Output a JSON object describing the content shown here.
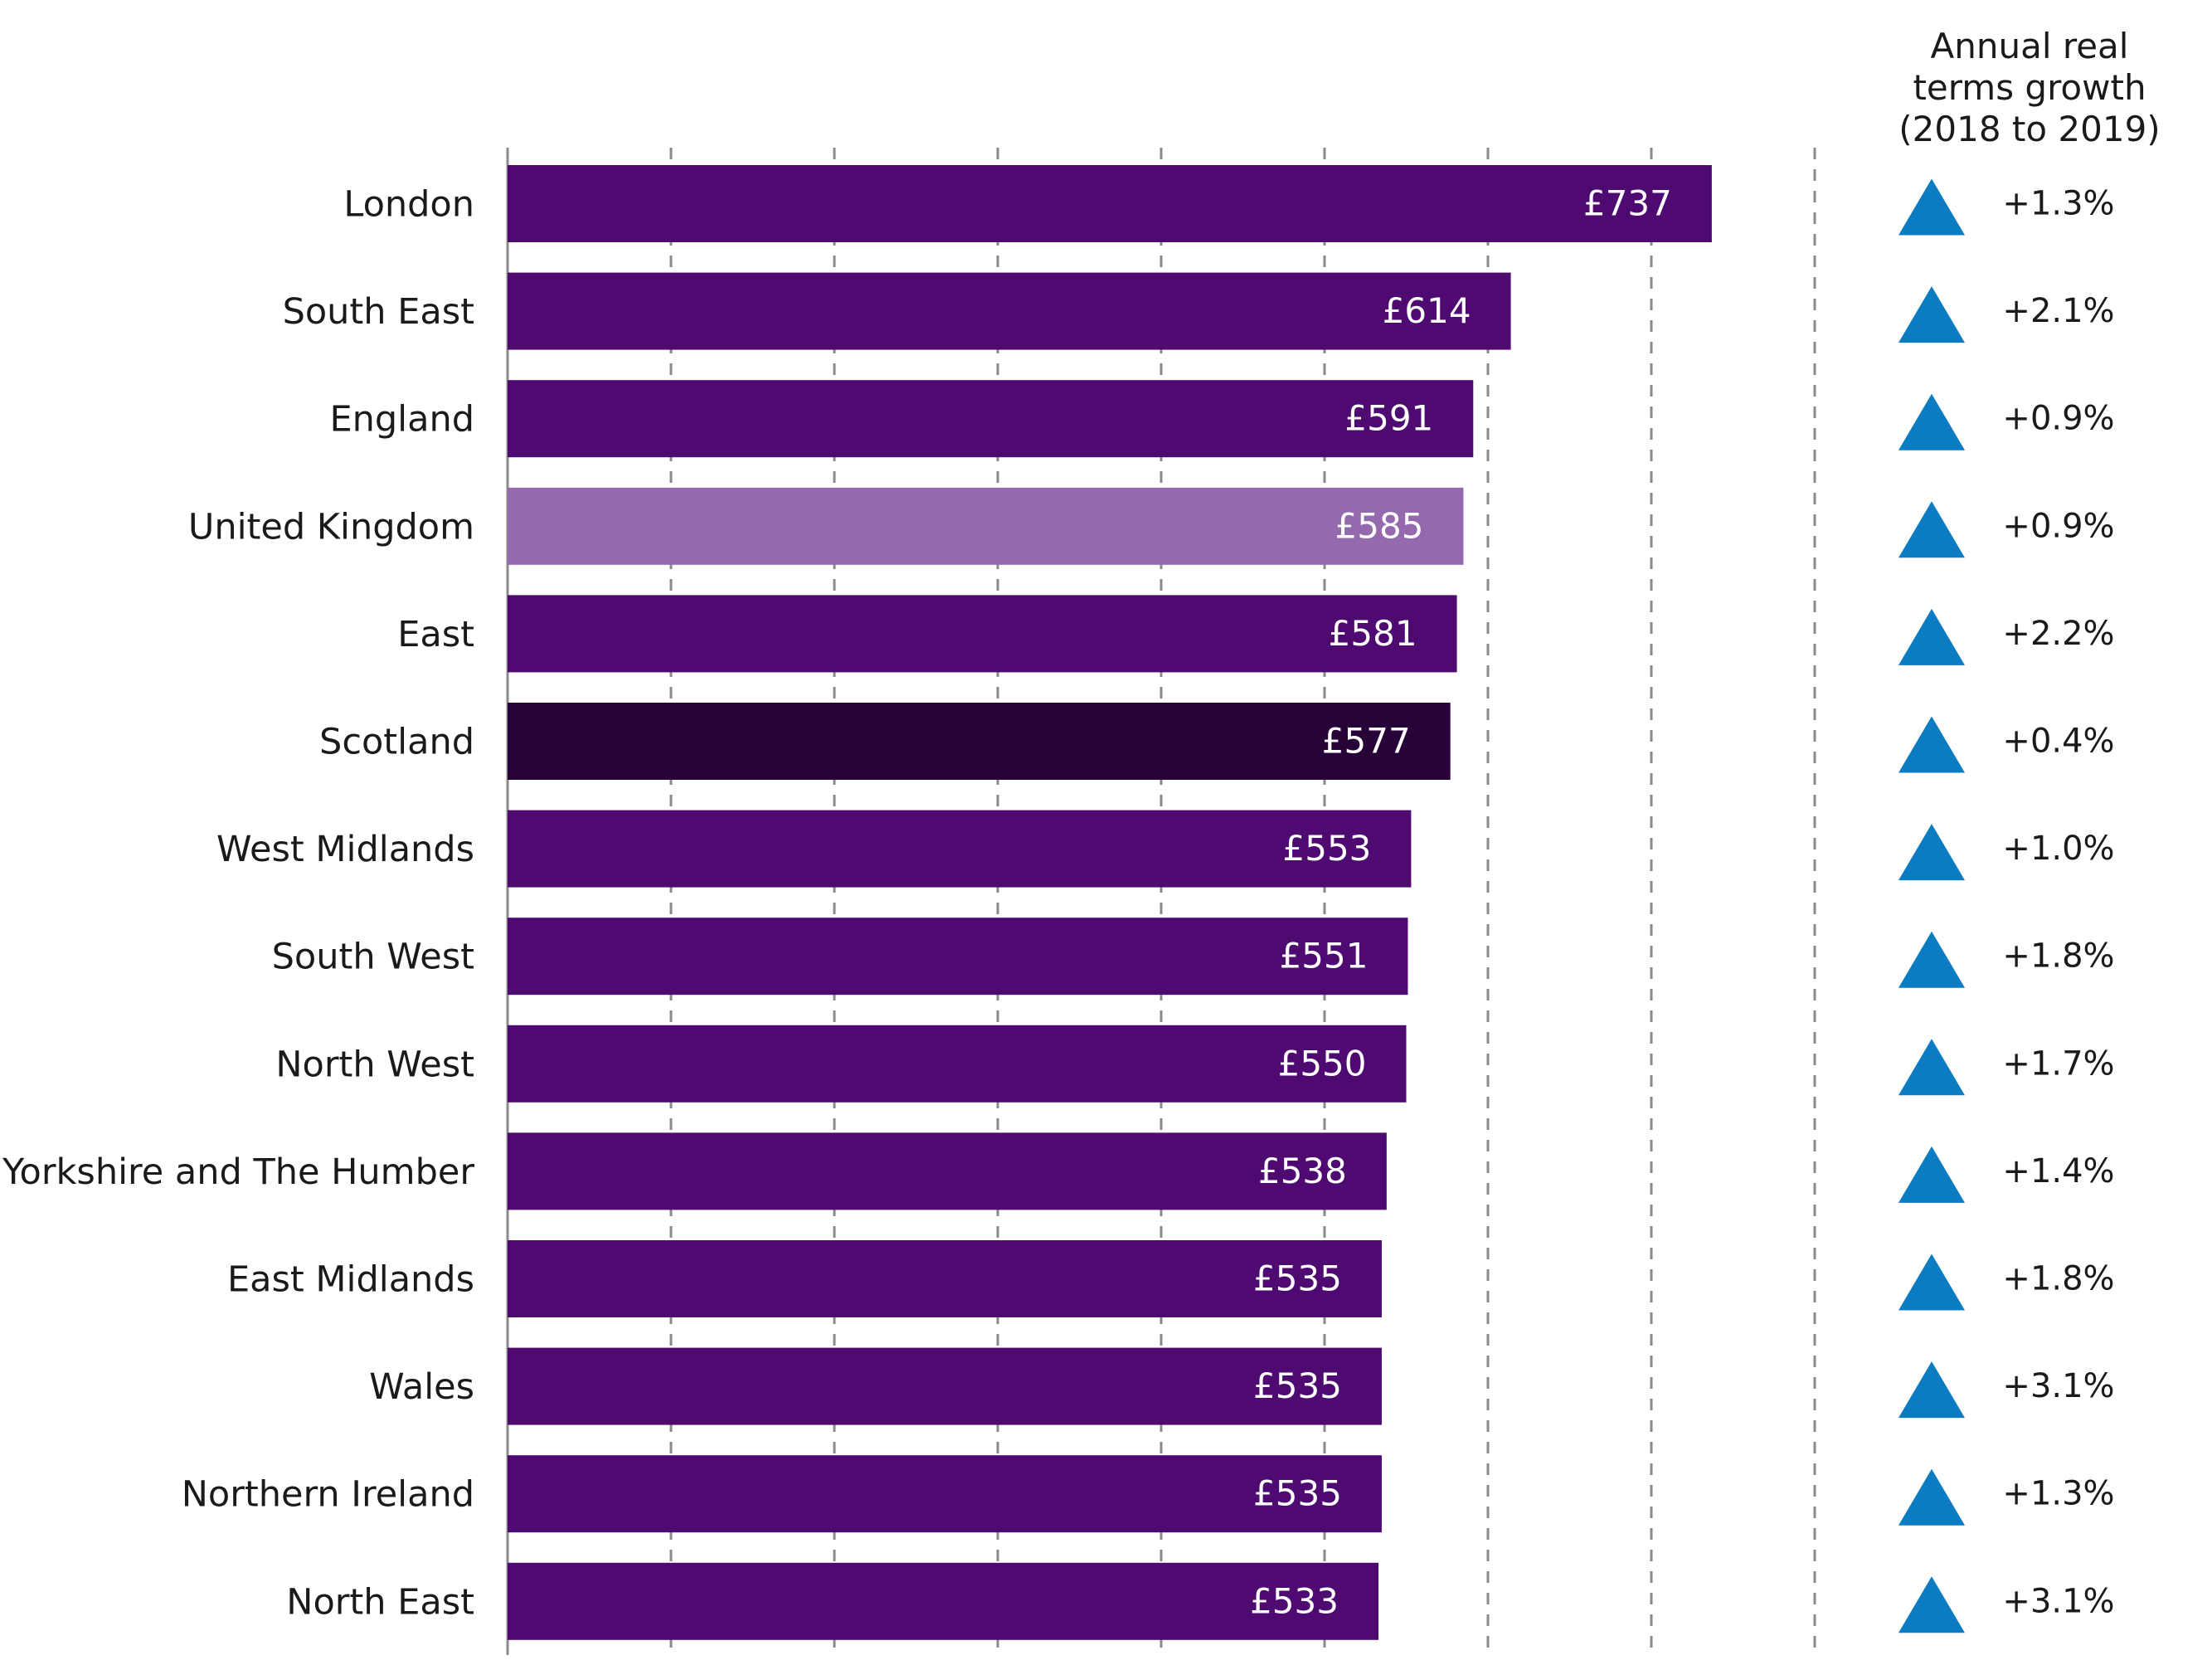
{
  "chart_data": {
    "type": "bar",
    "orientation": "horizontal",
    "categories": [
      "London",
      "South East",
      "England",
      "United Kingdom",
      "East",
      "Scotland",
      "West Midlands",
      "South West",
      "North West",
      "Yorkshire and The Humber",
      "East Midlands",
      "Wales",
      "Northern Ireland",
      "North East"
    ],
    "values": [
      737,
      614,
      591,
      585,
      581,
      577,
      553,
      551,
      550,
      538,
      535,
      535,
      535,
      533
    ],
    "value_labels": [
      "£737",
      "£614",
      "£591",
      "£585",
      "£581",
      "£577",
      "£553",
      "£551",
      "£550",
      "£538",
      "£535",
      "£535",
      "£535",
      "£533"
    ],
    "growth_header": [
      "Annual real",
      "terms growth",
      "(2018 to 2019)"
    ],
    "growth": [
      "+1.3%",
      "+2.1%",
      "+0.9%",
      "+0.9%",
      "+2.2%",
      "+0.4%",
      "+1.0%",
      "+1.8%",
      "+1.7%",
      "+1.4%",
      "+1.8%",
      "+3.1%",
      "+1.3%",
      "+3.1%"
    ],
    "growth_direction": "up",
    "xlim": [
      0,
      800
    ],
    "x_gridline_step": 100,
    "grid": true,
    "colors": {
      "default_bar": "#4f0a72",
      "highlight_uk": "#9569ae",
      "highlight_scotland": "#270238",
      "triangle": "#0b7cc2"
    },
    "bar_colors": [
      "#4f0a72",
      "#4f0a72",
      "#4f0a72",
      "#9569ae",
      "#4f0a72",
      "#270238",
      "#4f0a72",
      "#4f0a72",
      "#4f0a72",
      "#4f0a72",
      "#4f0a72",
      "#4f0a72",
      "#4f0a72",
      "#4f0a72"
    ]
  }
}
